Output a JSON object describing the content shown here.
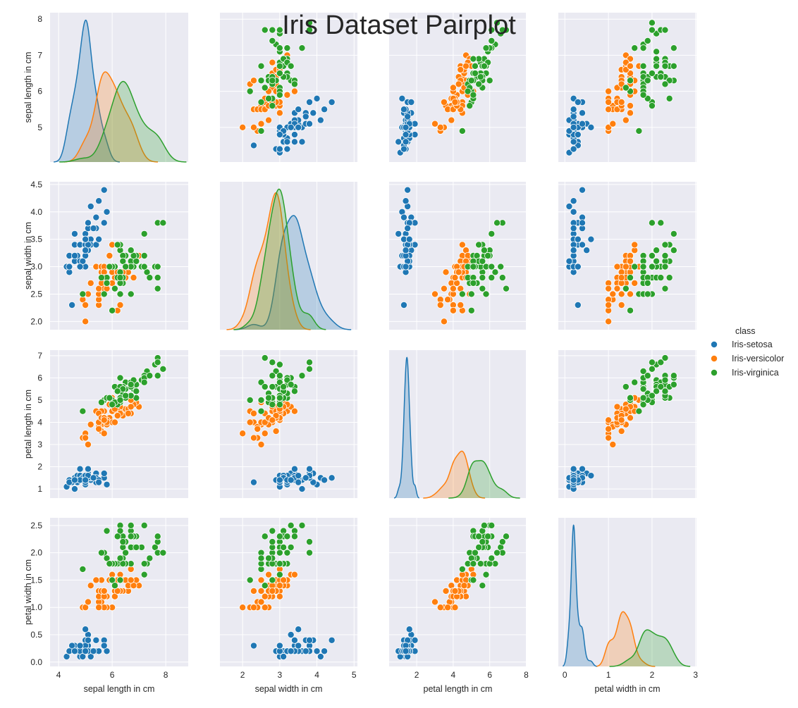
{
  "chart_data": {
    "type": "pairplot",
    "title": "Iris Dataset Pairplot",
    "legend_title": "class",
    "legend_position": "right",
    "grid": true,
    "variables": [
      {
        "label": "sepal length in cm",
        "xlim": [
          3.68,
          8.84
        ],
        "xticks": [
          4,
          6,
          8
        ],
        "ylim": [
          4.04,
          8.18
        ],
        "yticks": [
          5,
          6,
          7,
          8
        ]
      },
      {
        "label": "sepal width in cm",
        "xlim": [
          1.39,
          5.09
        ],
        "xticks": [
          2,
          3,
          4,
          5
        ],
        "ylim": [
          1.85,
          4.55
        ],
        "yticks": [
          {
            "value": 2,
            "label": "2.0"
          },
          2.5,
          {
            "value": 3,
            "label": "3.0"
          },
          3.5,
          {
            "value": 4,
            "label": "4.0"
          },
          4.5
        ]
      },
      {
        "label": "petal length in cm",
        "xlim": [
          0.49,
          8.02
        ],
        "xticks": [
          2,
          4,
          6,
          8
        ],
        "ylim": [
          0.59,
          7.25
        ],
        "yticks": [
          1,
          2,
          3,
          4,
          5,
          6,
          7
        ]
      },
      {
        "label": "petal width in cm",
        "xlim": [
          -0.15,
          3.02
        ],
        "xticks": [
          0,
          1,
          2,
          3
        ],
        "ylim": [
          -0.08,
          2.64
        ],
        "yticks": [
          {
            "value": 0,
            "label": "0.0"
          },
          0.5,
          {
            "value": 1,
            "label": "1.0"
          },
          1.5,
          {
            "value": 2,
            "label": "2.0"
          },
          2.5
        ]
      }
    ],
    "series": [
      {
        "name": "Iris-setosa",
        "color": "#1f77b4",
        "values": [
          [
            5.1,
            4.9,
            4.7,
            4.6,
            5.0,
            5.4,
            4.6,
            5.0,
            4.4,
            4.9,
            5.4,
            4.8,
            4.8,
            4.3,
            5.8,
            5.7,
            5.4,
            5.1,
            5.7,
            5.1,
            5.4,
            5.1,
            4.6,
            5.1,
            4.8,
            5.0,
            5.0,
            5.2,
            5.2,
            4.7,
            4.8,
            5.4,
            5.2,
            5.5,
            4.9,
            5.0,
            5.5,
            4.9,
            4.4,
            5.1,
            5.0,
            4.5,
            4.4,
            5.0,
            5.1,
            4.8,
            5.1,
            4.6,
            5.3,
            5.0
          ],
          [
            3.5,
            3.0,
            3.2,
            3.1,
            3.6,
            3.9,
            3.4,
            3.4,
            2.9,
            3.1,
            3.7,
            3.4,
            3.0,
            3.0,
            4.0,
            4.4,
            3.9,
            3.5,
            3.8,
            3.8,
            3.4,
            3.7,
            3.6,
            3.3,
            3.4,
            3.0,
            3.4,
            3.5,
            3.4,
            3.2,
            3.1,
            3.4,
            4.1,
            4.2,
            3.1,
            3.2,
            3.5,
            3.1,
            3.0,
            3.4,
            3.5,
            2.3,
            3.2,
            3.5,
            3.8,
            3.0,
            3.8,
            3.2,
            3.7,
            3.3
          ],
          [
            1.4,
            1.4,
            1.3,
            1.5,
            1.4,
            1.7,
            1.4,
            1.5,
            1.4,
            1.5,
            1.5,
            1.6,
            1.4,
            1.1,
            1.2,
            1.5,
            1.3,
            1.4,
            1.7,
            1.5,
            1.7,
            1.5,
            1.0,
            1.7,
            1.9,
            1.6,
            1.6,
            1.5,
            1.4,
            1.6,
            1.6,
            1.5,
            1.5,
            1.4,
            1.5,
            1.2,
            1.3,
            1.5,
            1.3,
            1.5,
            1.3,
            1.3,
            1.3,
            1.6,
            1.9,
            1.4,
            1.6,
            1.4,
            1.5,
            1.4
          ],
          [
            0.2,
            0.2,
            0.2,
            0.2,
            0.2,
            0.4,
            0.3,
            0.2,
            0.2,
            0.1,
            0.2,
            0.2,
            0.1,
            0.1,
            0.2,
            0.4,
            0.4,
            0.3,
            0.3,
            0.3,
            0.2,
            0.4,
            0.2,
            0.5,
            0.2,
            0.2,
            0.4,
            0.2,
            0.2,
            0.2,
            0.2,
            0.4,
            0.1,
            0.2,
            0.1,
            0.2,
            0.2,
            0.1,
            0.2,
            0.2,
            0.3,
            0.3,
            0.2,
            0.6,
            0.4,
            0.3,
            0.2,
            0.2,
            0.2,
            0.2
          ]
        ]
      },
      {
        "name": "Iris-versicolor",
        "color": "#ff7f0e",
        "values": [
          [
            7.0,
            6.4,
            6.9,
            5.5,
            6.5,
            5.7,
            6.3,
            4.9,
            6.6,
            5.2,
            5.0,
            5.9,
            6.0,
            6.1,
            5.6,
            6.7,
            5.6,
            5.8,
            6.2,
            5.6,
            5.9,
            6.1,
            6.3,
            6.1,
            6.4,
            6.6,
            6.8,
            6.7,
            6.0,
            5.7,
            5.5,
            5.5,
            5.8,
            6.0,
            5.4,
            6.0,
            6.7,
            6.3,
            5.6,
            5.5,
            5.5,
            6.1,
            5.8,
            5.0,
            5.6,
            5.7,
            5.7,
            6.2,
            5.1,
            5.7
          ],
          [
            3.2,
            3.2,
            3.1,
            2.3,
            2.8,
            2.8,
            3.3,
            2.4,
            2.9,
            2.7,
            2.0,
            3.0,
            2.2,
            2.9,
            2.9,
            3.1,
            3.0,
            2.7,
            2.2,
            2.5,
            3.2,
            2.8,
            2.5,
            2.8,
            2.9,
            3.0,
            2.8,
            3.0,
            2.9,
            2.6,
            2.4,
            2.4,
            2.7,
            2.7,
            3.0,
            3.4,
            3.1,
            2.3,
            3.0,
            2.5,
            2.6,
            3.0,
            2.6,
            2.3,
            2.7,
            3.0,
            2.9,
            2.9,
            2.5,
            2.8
          ],
          [
            4.7,
            4.5,
            4.9,
            4.0,
            4.6,
            4.5,
            4.7,
            3.3,
            4.6,
            3.9,
            3.5,
            4.2,
            4.0,
            4.7,
            3.6,
            4.4,
            4.5,
            4.1,
            4.5,
            3.9,
            4.8,
            4.0,
            4.9,
            4.7,
            4.3,
            4.4,
            4.8,
            5.0,
            4.5,
            3.5,
            3.8,
            3.7,
            3.9,
            5.1,
            4.5,
            4.5,
            4.7,
            4.4,
            4.1,
            4.0,
            4.4,
            4.6,
            4.0,
            3.3,
            4.2,
            4.2,
            4.2,
            4.3,
            3.0,
            4.1
          ],
          [
            1.4,
            1.5,
            1.5,
            1.3,
            1.5,
            1.3,
            1.6,
            1.0,
            1.3,
            1.4,
            1.0,
            1.5,
            1.0,
            1.4,
            1.3,
            1.4,
            1.5,
            1.0,
            1.5,
            1.1,
            1.8,
            1.3,
            1.5,
            1.2,
            1.3,
            1.4,
            1.4,
            1.7,
            1.5,
            1.0,
            1.1,
            1.0,
            1.2,
            1.6,
            1.5,
            1.6,
            1.5,
            1.3,
            1.3,
            1.3,
            1.2,
            1.4,
            1.2,
            1.0,
            1.3,
            1.2,
            1.3,
            1.3,
            1.1,
            1.3
          ]
        ]
      },
      {
        "name": "Iris-virginica",
        "color": "#2ca02c",
        "values": [
          [
            6.3,
            5.8,
            7.1,
            6.3,
            6.5,
            7.6,
            4.9,
            7.3,
            6.7,
            7.2,
            6.5,
            6.4,
            6.8,
            5.7,
            5.8,
            6.4,
            6.5,
            7.7,
            7.7,
            6.0,
            6.9,
            5.6,
            7.7,
            6.3,
            6.7,
            7.2,
            6.2,
            6.1,
            6.4,
            7.2,
            7.4,
            7.9,
            6.4,
            6.3,
            6.1,
            7.7,
            6.3,
            6.4,
            6.0,
            6.9,
            6.7,
            6.9,
            5.8,
            6.8,
            6.7,
            6.7,
            6.3,
            6.5,
            6.2,
            5.9
          ],
          [
            3.3,
            2.7,
            3.0,
            2.9,
            3.0,
            3.0,
            2.5,
            2.9,
            2.5,
            3.6,
            3.2,
            2.7,
            3.0,
            2.5,
            2.8,
            3.2,
            3.0,
            3.8,
            2.6,
            2.2,
            3.2,
            2.8,
            2.8,
            2.7,
            3.3,
            3.2,
            2.8,
            3.0,
            2.8,
            3.0,
            2.8,
            3.8,
            2.8,
            2.8,
            2.6,
            3.0,
            3.4,
            3.1,
            3.0,
            3.1,
            3.1,
            3.1,
            2.7,
            3.2,
            3.3,
            3.0,
            2.5,
            3.0,
            3.4,
            3.0
          ],
          [
            6.0,
            5.1,
            5.9,
            5.6,
            5.8,
            6.6,
            4.5,
            6.3,
            5.8,
            6.1,
            5.1,
            5.3,
            5.5,
            5.0,
            5.1,
            5.3,
            5.5,
            6.7,
            6.9,
            5.0,
            5.7,
            4.9,
            6.7,
            4.9,
            5.7,
            6.0,
            4.8,
            4.9,
            5.6,
            5.8,
            6.1,
            6.4,
            5.6,
            5.1,
            5.6,
            6.1,
            5.6,
            5.5,
            4.8,
            5.4,
            5.6,
            5.1,
            5.1,
            5.9,
            5.7,
            5.2,
            5.0,
            5.2,
            5.4,
            5.1
          ],
          [
            2.5,
            1.9,
            2.1,
            1.8,
            2.2,
            2.1,
            1.7,
            1.8,
            1.8,
            2.5,
            2.0,
            1.9,
            2.1,
            2.0,
            2.4,
            2.3,
            1.8,
            2.2,
            2.3,
            1.5,
            2.3,
            2.0,
            2.0,
            1.8,
            2.1,
            1.8,
            1.8,
            1.8,
            2.1,
            1.6,
            1.9,
            2.0,
            2.2,
            1.5,
            1.4,
            2.3,
            2.4,
            1.8,
            1.8,
            2.1,
            2.4,
            2.3,
            1.9,
            2.3,
            2.5,
            2.3,
            1.9,
            2.0,
            2.3,
            1.8
          ]
        ]
      }
    ]
  }
}
